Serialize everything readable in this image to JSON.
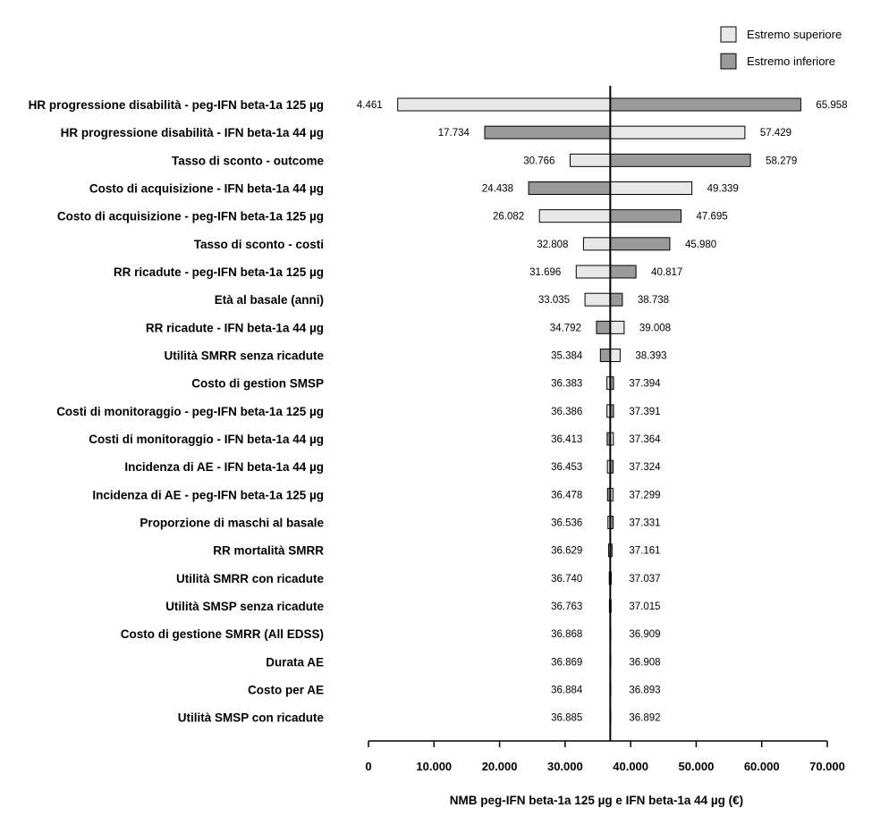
{
  "chart_data": {
    "type": "tornado",
    "xlabel": "NMB peg-IFN beta-1a 125 µg e IFN beta-1a 44 µg (€)",
    "xlim": [
      0,
      70000
    ],
    "xticks": [
      0,
      10000,
      20000,
      30000,
      40000,
      50000,
      60000,
      70000
    ],
    "xtick_labels": [
      "0",
      "10.000",
      "20.000",
      "30.000",
      "40.000",
      "50.000",
      "60.000",
      "70.000"
    ],
    "baseline": 36888,
    "legend": {
      "position": "top-right",
      "items": [
        {
          "name": "Estremo superiore",
          "color": "#e8e8e8"
        },
        {
          "name": "Estremo inferiore",
          "color": "#9a9a9a"
        }
      ]
    },
    "colors": {
      "superiore": "#e8e8e8",
      "inferiore": "#9a9a9a",
      "stroke": "#000000"
    },
    "rows": [
      {
        "parameter": "HR progressione disabilità - peg-IFN beta-1a 125 µg",
        "low": 4461,
        "high": 65958,
        "low_label": "4.461",
        "high_label": "65.958",
        "left_color": "superiore"
      },
      {
        "parameter": "HR progressione disabilità - IFN beta-1a 44 µg",
        "low": 17734,
        "high": 57429,
        "low_label": "17.734",
        "high_label": "57.429",
        "left_color": "inferiore"
      },
      {
        "parameter": "Tasso di sconto - outcome",
        "low": 30766,
        "high": 58279,
        "low_label": "30.766",
        "high_label": "58.279",
        "left_color": "superiore"
      },
      {
        "parameter": "Costo di acquisizione - IFN beta-1a 44 µg",
        "low": 24438,
        "high": 49339,
        "low_label": "24.438",
        "high_label": "49.339",
        "left_color": "inferiore"
      },
      {
        "parameter": "Costo di acquisizione - peg-IFN beta-1a 125 µg",
        "low": 26082,
        "high": 47695,
        "low_label": "26.082",
        "high_label": "47.695",
        "left_color": "superiore"
      },
      {
        "parameter": "Tasso di sconto - costi",
        "low": 32808,
        "high": 45980,
        "low_label": "32.808",
        "high_label": "45.980",
        "left_color": "superiore"
      },
      {
        "parameter": "RR ricadute - peg-IFN beta-1a 125 µg",
        "low": 31696,
        "high": 40817,
        "low_label": "31.696",
        "high_label": "40.817",
        "left_color": "superiore"
      },
      {
        "parameter": "Età al basale (anni)",
        "low": 33035,
        "high": 38738,
        "low_label": "33.035",
        "high_label": "38.738",
        "left_color": "superiore"
      },
      {
        "parameter": "RR ricadute - IFN beta-1a 44 µg",
        "low": 34792,
        "high": 39008,
        "low_label": "34.792",
        "high_label": "39.008",
        "left_color": "inferiore"
      },
      {
        "parameter": "Utilità SMRR senza ricadute",
        "low": 35384,
        "high": 38393,
        "low_label": "35.384",
        "high_label": "38.393",
        "left_color": "inferiore"
      },
      {
        "parameter": "Costo di gestion SMSP",
        "low": 36383,
        "high": 37394,
        "low_label": "36.383",
        "high_label": "37.394",
        "left_color": "superiore"
      },
      {
        "parameter": "Costi di monitoraggio - peg-IFN beta-1a 125 µg",
        "low": 36386,
        "high": 37391,
        "low_label": "36.386",
        "high_label": "37.391",
        "left_color": "superiore"
      },
      {
        "parameter": "Costi di monitoraggio - IFN beta-1a 44 µg",
        "low": 36413,
        "high": 37364,
        "low_label": "36.413",
        "high_label": "37.364",
        "left_color": "inferiore"
      },
      {
        "parameter": "Incidenza di AE - IFN beta-1a 44 µg",
        "low": 36453,
        "high": 37324,
        "low_label": "36.453",
        "high_label": "37.324",
        "left_color": "superiore"
      },
      {
        "parameter": "Incidenza di AE - peg-IFN beta-1a 125 µg",
        "low": 36478,
        "high": 37299,
        "low_label": "36.478",
        "high_label": "37.299",
        "left_color": "inferiore"
      },
      {
        "parameter": "Proporzione di maschi al basale",
        "low": 36536,
        "high": 37331,
        "low_label": "36.536",
        "high_label": "37.331",
        "left_color": "superiore"
      },
      {
        "parameter": "RR mortalità SMRR",
        "low": 36629,
        "high": 37161,
        "low_label": "36.629",
        "high_label": "37.161",
        "left_color": "superiore"
      },
      {
        "parameter": "Utilità SMRR con ricadute",
        "low": 36740,
        "high": 37037,
        "low_label": "36.740",
        "high_label": "37.037",
        "left_color": "inferiore"
      },
      {
        "parameter": "Utilità SMSP senza ricadute",
        "low": 36763,
        "high": 37015,
        "low_label": "36.763",
        "high_label": "37.015",
        "left_color": "inferiore"
      },
      {
        "parameter": "Costo di gestione SMRR (All EDSS)",
        "low": 36868,
        "high": 36909,
        "low_label": "36.868",
        "high_label": "36.909",
        "left_color": "superiore"
      },
      {
        "parameter": "Durata AE",
        "low": 36869,
        "high": 36908,
        "low_label": "36.869",
        "high_label": "36.908",
        "left_color": "superiore"
      },
      {
        "parameter": "Costo per AE",
        "low": 36884,
        "high": 36893,
        "low_label": "36.884",
        "high_label": "36.893",
        "left_color": "superiore"
      },
      {
        "parameter": "Utilità SMSP con ricadute",
        "low": 36885,
        "high": 36892,
        "low_label": "36.885",
        "high_label": "36.892",
        "left_color": "superiore"
      }
    ]
  }
}
